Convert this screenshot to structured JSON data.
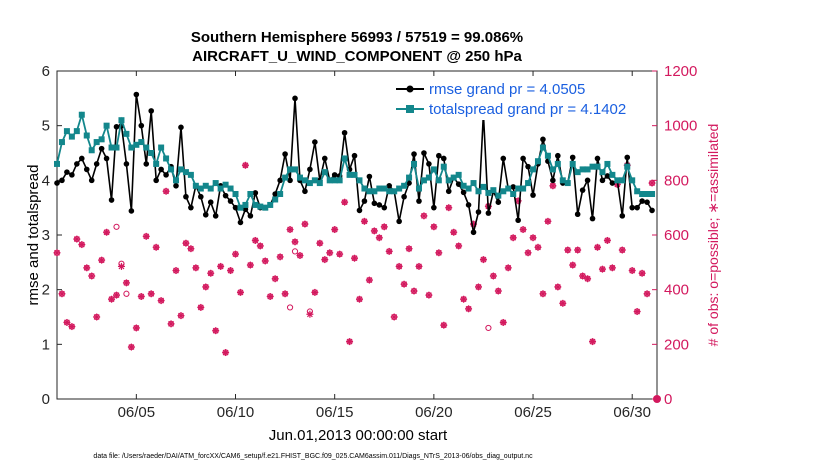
{
  "chart_data": {
    "type": "line",
    "title_line1": "Southern Hemisphere 56993 / 57519 = 99.086%",
    "title_line2": "AIRCRAFT_U_WIND_COMPONENT @ 250 hPa",
    "xlabel": "Jun.01,2013 00:00:00 start",
    "ylabel_left": "rmse and totalspread",
    "ylabel_right": "# of obs: o=possible; ∗=assimilated",
    "footnote": "data file: /Users/raeder/DAI/ATM_forcXX/CAM6_setup/f.e21.FHIST_BGC.f09_025.CAM6assim.011/Diags_NTrS_2013-06/obs_diag_output.nc",
    "xlim": [
      1.0,
      31.25
    ],
    "ylim_left": [
      0,
      6
    ],
    "ylim_right": [
      0,
      1200
    ],
    "x_ticks": [
      5,
      10,
      15,
      20,
      25,
      30
    ],
    "x_tick_labels": [
      "06/05",
      "06/10",
      "06/15",
      "06/20",
      "06/25",
      "06/30"
    ],
    "y_left_ticks": [
      "0",
      "1",
      "2",
      "3",
      "4",
      "5",
      "6"
    ],
    "y_right_ticks": [
      "0",
      "200",
      "400",
      "600",
      "800",
      "1000",
      "1200"
    ],
    "colors": {
      "rmse": "#000000",
      "spread": "#13878c",
      "obs": "#d3195e",
      "legend_text": "#1a5fe0"
    },
    "x": [
      1.0,
      1.25,
      1.5,
      1.75,
      2.0,
      2.25,
      2.5,
      2.75,
      3.0,
      3.25,
      3.5,
      3.75,
      4.0,
      4.25,
      4.5,
      4.75,
      5.0,
      5.25,
      5.5,
      5.75,
      6.0,
      6.25,
      6.5,
      6.75,
      7.0,
      7.25,
      7.5,
      7.75,
      8.0,
      8.25,
      8.5,
      8.75,
      9.0,
      9.25,
      9.5,
      9.75,
      10.0,
      10.25,
      10.5,
      10.75,
      11.0,
      11.25,
      11.5,
      11.75,
      12.0,
      12.25,
      12.5,
      12.75,
      13.0,
      13.25,
      13.5,
      13.75,
      14.0,
      14.25,
      14.5,
      14.75,
      15.0,
      15.25,
      15.5,
      15.75,
      16.0,
      16.25,
      16.5,
      16.75,
      17.0,
      17.25,
      17.5,
      17.75,
      18.0,
      18.25,
      18.5,
      18.75,
      19.0,
      19.25,
      19.5,
      19.75,
      20.0,
      20.25,
      20.5,
      20.75,
      21.0,
      21.25,
      21.5,
      21.75,
      22.0,
      22.25,
      22.5,
      22.75,
      23.0,
      23.25,
      23.5,
      23.75,
      24.0,
      24.25,
      24.5,
      24.75,
      25.0,
      25.25,
      25.5,
      25.75,
      26.0,
      26.25,
      26.5,
      26.75,
      27.0,
      27.25,
      27.5,
      27.75,
      28.0,
      28.25,
      28.5,
      28.75,
      29.0,
      29.25,
      29.5,
      29.75,
      30.0,
      30.25,
      30.5,
      30.75,
      31.0
    ],
    "series": [
      {
        "name": "rmse grand pr = 4.0505",
        "axis": "left",
        "values": [
          3.95,
          4.0,
          4.15,
          4.1,
          4.3,
          4.4,
          4.2,
          4.0,
          4.3,
          4.58,
          4.4,
          3.64,
          4.98,
          5.0,
          4.3,
          3.44,
          5.57,
          5.0,
          4.3,
          5.27,
          4.0,
          4.2,
          4.1,
          4.25,
          3.9,
          4.97,
          3.7,
          3.5,
          3.9,
          3.7,
          3.37,
          3.6,
          3.35,
          3.9,
          3.72,
          3.62,
          3.5,
          3.23,
          3.47,
          3.35,
          3.77,
          3.5,
          3.5,
          3.55,
          3.75,
          4.0,
          4.48,
          4.0,
          5.5,
          4.0,
          3.8,
          4.2,
          4.7,
          4.0,
          4.4,
          4.0,
          4.1,
          4.08,
          4.87,
          4.2,
          4.45,
          3.45,
          3.62,
          4.07,
          3.58,
          3.55,
          3.5,
          3.9,
          3.8,
          3.25,
          3.7,
          3.95,
          4.48,
          3.62,
          4.5,
          4.3,
          3.5,
          4.45,
          4.4,
          3.8,
          4.05,
          3.93,
          3.78,
          3.55,
          3.05,
          3.42,
          5.22,
          3.4,
          3.8,
          3.6,
          4.4,
          3.85,
          3.88,
          3.27,
          4.4,
          4.25,
          3.73,
          4.3,
          4.75,
          4.35,
          4.0,
          4.45,
          3.95,
          3.95,
          4.42,
          3.38,
          3.82,
          4.0,
          3.3,
          4.4,
          4.0,
          4.08,
          3.95,
          4.0,
          3.35,
          4.42,
          3.5,
          3.5,
          3.62,
          3.6,
          3.45
        ]
      },
      {
        "name": "totalspread grand pr = 4.1402",
        "axis": "left",
        "values": [
          4.3,
          4.7,
          4.9,
          4.8,
          4.9,
          5.2,
          4.82,
          4.55,
          4.7,
          4.75,
          5.0,
          4.6,
          4.6,
          5.1,
          4.85,
          4.6,
          4.65,
          4.7,
          4.6,
          4.5,
          4.3,
          4.6,
          4.4,
          4.2,
          4.0,
          4.2,
          4.15,
          4.1,
          3.9,
          3.85,
          3.9,
          3.85,
          3.95,
          3.85,
          3.92,
          3.85,
          3.75,
          3.5,
          3.55,
          3.75,
          3.55,
          3.52,
          3.5,
          3.55,
          3.65,
          3.75,
          4.05,
          4.2,
          4.2,
          4.05,
          4.0,
          3.95,
          4.0,
          3.95,
          4.15,
          4.0,
          4.0,
          4.0,
          4.4,
          4.1,
          4.1,
          4.0,
          3.85,
          3.8,
          3.8,
          3.85,
          3.85,
          3.8,
          3.8,
          3.85,
          3.9,
          4.05,
          4.3,
          3.85,
          4.0,
          4.05,
          4.2,
          4.0,
          4.25,
          4.0,
          4.05,
          4.1,
          3.9,
          3.85,
          3.95,
          3.8,
          3.88,
          3.77,
          3.82,
          3.72,
          3.8,
          3.85,
          3.75,
          3.85,
          3.85,
          3.95,
          4.2,
          4.35,
          4.6,
          4.45,
          4.2,
          4.3,
          4.0,
          3.95,
          4.3,
          4.15,
          4.2,
          4.2,
          4.25,
          4.25,
          4.15,
          4.3,
          4.1,
          4.0,
          4.0,
          4.25,
          4.0,
          3.8,
          3.75,
          3.75,
          3.75
        ]
      },
      {
        "name": "# obs possible (o)",
        "axis": "right",
        "values": [
          535,
          385,
          280,
          265,
          585,
          565,
          480,
          450,
          300,
          508,
          610,
          365,
          380,
          495,
          425,
          190,
          260,
          375,
          595,
          385,
          555,
          360,
          760,
          275,
          470,
          305,
          570,
          550,
          480,
          335,
          410,
          460,
          250,
          485,
          170,
          470,
          530,
          390,
          855,
          490,
          580,
          560,
          505,
          375,
          440,
          520,
          385,
          620,
          575,
          525,
          640,
          320,
          390,
          570,
          510,
          535,
          620,
          530,
          720,
          210,
          515,
          365,
          650,
          435,
          615,
          590,
          630,
          540,
          300,
          485,
          420,
          550,
          395,
          485,
          670,
          380,
          630,
          535,
          270,
          700,
          610,
          560,
          365,
          330,
          640,
          410,
          510,
          705,
          450,
          395,
          280,
          480,
          590,
          725,
          620,
          535,
          590,
          555,
          385,
          650,
          780,
          410,
          350,
          545,
          490,
          545,
          450,
          440,
          210,
          555,
          475,
          580,
          480,
          785,
          545,
          855,
          470,
          320,
          460,
          385,
          790
        ]
      },
      {
        "name": "# obs assimilated (∗)",
        "axis": "right",
        "values": [
          535,
          385,
          280,
          265,
          585,
          565,
          480,
          450,
          300,
          508,
          610,
          365,
          380,
          485,
          425,
          190,
          260,
          375,
          595,
          385,
          555,
          360,
          760,
          275,
          470,
          305,
          570,
          550,
          480,
          335,
          410,
          460,
          250,
          485,
          170,
          470,
          530,
          390,
          855,
          490,
          580,
          560,
          505,
          375,
          440,
          520,
          385,
          620,
          575,
          525,
          640,
          310,
          390,
          570,
          510,
          535,
          620,
          530,
          720,
          210,
          515,
          365,
          650,
          435,
          615,
          590,
          630,
          540,
          300,
          485,
          420,
          550,
          395,
          485,
          670,
          380,
          630,
          535,
          270,
          700,
          610,
          560,
          365,
          330,
          640,
          410,
          510,
          705,
          450,
          395,
          280,
          480,
          590,
          725,
          620,
          535,
          590,
          555,
          385,
          650,
          780,
          410,
          350,
          545,
          490,
          545,
          450,
          440,
          210,
          555,
          475,
          580,
          480,
          785,
          545,
          855,
          470,
          320,
          460,
          385,
          790
        ]
      }
    ],
    "obs_possible_extra_circles": [
      [
        4.0,
        630
      ],
      [
        4.5,
        385
      ],
      [
        13.0,
        540
      ],
      [
        12.75,
        335
      ],
      [
        22.75,
        260
      ]
    ]
  }
}
